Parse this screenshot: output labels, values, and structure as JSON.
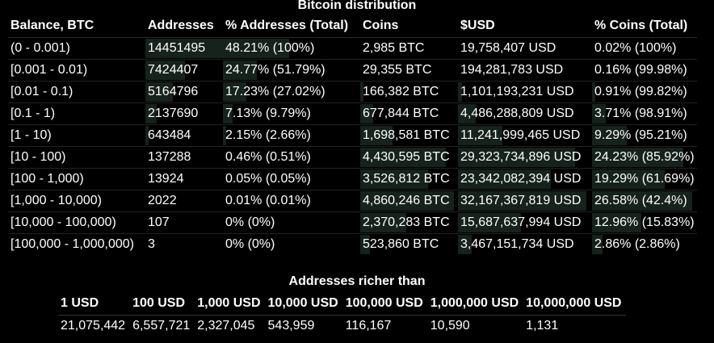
{
  "title": "Bitcoin distribution",
  "distribution": {
    "headers": [
      "Balance, BTC",
      "Addresses",
      "% Addresses (Total)",
      "Coins",
      "$USD",
      "% Coins (Total)"
    ],
    "rows": [
      {
        "range": "(0 - 0.001)",
        "addresses": "14451495",
        "pct_addresses": "48.21% (100%)",
        "coins": "2,985 BTC",
        "usd": "19,758,407 USD",
        "pct_coins": "0.02% (100%)"
      },
      {
        "range": "[0.001 - 0.01)",
        "addresses": "7424407",
        "pct_addresses": "24.77% (51.79%)",
        "coins": "29,355 BTC",
        "usd": "194,281,783 USD",
        "pct_coins": "0.16% (99.98%)"
      },
      {
        "range": "[0.01 - 0.1)",
        "addresses": "5164796",
        "pct_addresses": "17.23% (27.02%)",
        "coins": "166,382 BTC",
        "usd": "1,101,193,231 USD",
        "pct_coins": "0.91% (99.82%)"
      },
      {
        "range": "[0.1 - 1)",
        "addresses": "2137690",
        "pct_addresses": "7.13% (9.79%)",
        "coins": "677,844 BTC",
        "usd": "4,486,288,809 USD",
        "pct_coins": "3.71% (98.91%)"
      },
      {
        "range": "[1 - 10)",
        "addresses": "643484",
        "pct_addresses": "2.15% (2.66%)",
        "coins": "1,698,581 BTC",
        "usd": "11,241,999,465 USD",
        "pct_coins": "9.29% (95.21%)"
      },
      {
        "range": "[10 - 100)",
        "addresses": "137288",
        "pct_addresses": "0.46% (0.51%)",
        "coins": "4,430,595 BTC",
        "usd": "29,323,734,896 USD",
        "pct_coins": "24.23% (85.92%)"
      },
      {
        "range": "[100 - 1,000)",
        "addresses": "13924",
        "pct_addresses": "0.05% (0.05%)",
        "coins": "3,526,812 BTC",
        "usd": "23,342,082,394 USD",
        "pct_coins": "19.29% (61.69%)"
      },
      {
        "range": "[1,000 - 10,000)",
        "addresses": "2022",
        "pct_addresses": "0.01% (0.01%)",
        "coins": "4,860,246 BTC",
        "usd": "32,167,367,819 USD",
        "pct_coins": "26.58% (42.4%)"
      },
      {
        "range": "[10,000 - 100,000)",
        "addresses": "107",
        "pct_addresses": "0% (0%)",
        "coins": "2,370,283 BTC",
        "usd": "15,687,637,994 USD",
        "pct_coins": "12.96% (15.83%)"
      },
      {
        "range": "[100,000 - 1,000,000)",
        "addresses": "3",
        "pct_addresses": "0% (0%)",
        "coins": "523,860 BTC",
        "usd": "3,467,151,734 USD",
        "pct_coins": "2.86% (2.86%)"
      }
    ]
  },
  "rich": {
    "title": "Addresses richer than",
    "headers": [
      "1 USD",
      "100 USD",
      "1,000 USD",
      "10,000 USD",
      "100,000 USD",
      "1,000,000 USD",
      "10,000,000 USD"
    ],
    "values": [
      "21,075,442",
      "6,557,721",
      "2,327,045",
      "543,959",
      "116,167",
      "10,590",
      "1,131"
    ]
  },
  "colors": {
    "background": "#000000",
    "text": "#ffffff",
    "bar_fill": "#16221c"
  }
}
